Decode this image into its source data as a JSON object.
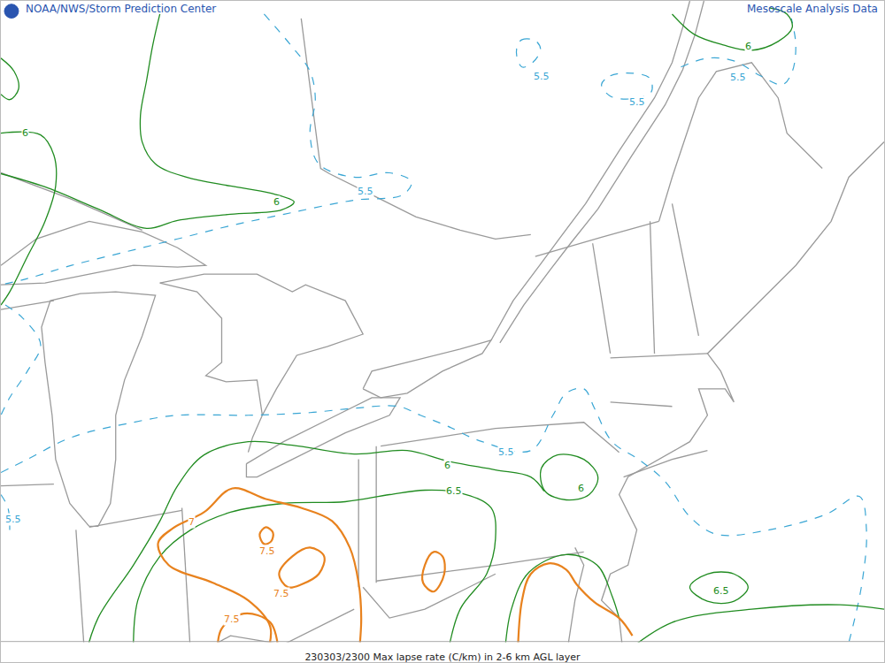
{
  "chart_data": {
    "type": "contour_map",
    "title": "230303/2300 Max lapse rate (C/km) in 2-6 km AGL layer",
    "header_left": "NOAA/NWS/Storm Prediction Center",
    "header_right": "Mesoscale Analysis Data",
    "xlim": [
      0,
      1000
    ],
    "ylim": [
      750,
      0
    ],
    "tick_labels": false,
    "grid": false,
    "contours": [
      {
        "level": 5.5,
        "color": "#3aa6d4",
        "line_style": "dash",
        "lines": [
          [
            [
              298,
              15
            ],
            [
              328,
              50
            ],
            [
              350,
              80
            ],
            [
              356,
              112
            ],
            [
              350,
              150
            ],
            [
              360,
              185
            ],
            [
              400,
              200
            ],
            [
              440,
              195
            ],
            [
              465,
              205
            ],
            [
              455,
              220
            ],
            [
              400,
              226
            ],
            [
              330,
              240
            ],
            [
              260,
              255
            ],
            [
              200,
              270
            ],
            [
              140,
              285
            ],
            [
              80,
              300
            ],
            [
              30,
              315
            ],
            [
              0,
              322
            ]
          ],
          [
            [
              585,
              50
            ],
            [
              590,
              44
            ],
            [
              605,
              45
            ],
            [
              611,
              55
            ],
            [
              602,
              70
            ],
            [
              590,
              75
            ],
            [
              584,
              62
            ],
            [
              585,
              50
            ]
          ],
          [
            [
              680,
              95
            ],
            [
              690,
              85
            ],
            [
              715,
              82
            ],
            [
              735,
              88
            ],
            [
              736,
              104
            ],
            [
              715,
              111
            ],
            [
              690,
              108
            ],
            [
              680,
              95
            ]
          ],
          [
            [
              770,
              75
            ],
            [
              800,
              65
            ],
            [
              830,
              68
            ],
            [
              860,
              85
            ],
            [
              885,
              95
            ],
            [
              896,
              80
            ],
            [
              900,
              50
            ],
            [
              895,
              20
            ]
          ],
          [
            [
              5,
              345
            ],
            [
              25,
              360
            ],
            [
              45,
              390
            ],
            [
              30,
              420
            ],
            [
              10,
              450
            ],
            [
              0,
              470
            ]
          ],
          [
            [
              0,
              535
            ],
            [
              30,
              520
            ],
            [
              80,
              495
            ],
            [
              150,
              478
            ],
            [
              200,
              470
            ],
            [
              280,
              470
            ],
            [
              350,
              467
            ],
            [
              400,
              462
            ],
            [
              450,
              460
            ],
            [
              475,
              470
            ],
            [
              505,
              482
            ],
            [
              545,
              500
            ],
            [
              600,
              510
            ],
            [
              625,
              470
            ],
            [
              640,
              445
            ],
            [
              660,
              440
            ],
            [
              672,
              462
            ],
            [
              692,
              500
            ],
            [
              722,
              520
            ],
            [
              752,
              545
            ],
            [
              780,
              585
            ],
            [
              810,
              605
            ],
            [
              870,
              600
            ],
            [
              935,
              582
            ],
            [
              972,
              562
            ],
            [
              980,
              600
            ],
            [
              975,
              660
            ],
            [
              962,
              720
            ],
            [
              955,
              745
            ]
          ],
          [
            [
              0,
              560
            ],
            [
              8,
              575
            ],
            [
              10,
              600
            ]
          ]
        ],
        "labels": [
          [
            612,
            86
          ],
          [
            720,
            115
          ],
          [
            835,
            87
          ],
          [
            413,
            216
          ],
          [
            572,
            512
          ],
          [
            14,
            588
          ]
        ]
      },
      {
        "level": 6,
        "color": "#218c21",
        "line_style": "solid",
        "lines": [
          [
            [
              180,
              15
            ],
            [
              172,
              50
            ],
            [
              165,
              90
            ],
            [
              158,
              130
            ],
            [
              160,
              160
            ],
            [
              175,
              185
            ],
            [
              210,
              200
            ],
            [
              260,
              210
            ],
            [
              305,
              218
            ],
            [
              332,
              228
            ],
            [
              318,
              237
            ],
            [
              260,
              242
            ],
            [
              200,
              249
            ],
            [
              165,
              258
            ],
            [
              110,
              236
            ],
            [
              50,
              211
            ],
            [
              0,
              196
            ]
          ],
          [
            [
              0,
              150
            ],
            [
              45,
              152
            ],
            [
              60,
              175
            ],
            [
              62,
              210
            ],
            [
              50,
              250
            ],
            [
              30,
              290
            ],
            [
              10,
              330
            ],
            [
              0,
              345
            ]
          ],
          [
            [
              0,
              65
            ],
            [
              15,
              80
            ],
            [
              20,
              100
            ],
            [
              10,
              112
            ],
            [
              0,
              106
            ]
          ],
          [
            [
              760,
              15
            ],
            [
              785,
              38
            ],
            [
              818,
              50
            ],
            [
              850,
              56
            ],
            [
              880,
              46
            ],
            [
              896,
              30
            ],
            [
              890,
              15
            ],
            [
              870,
              8
            ]
          ],
          [
            [
              95,
              745
            ],
            [
              110,
              700
            ],
            [
              150,
              640
            ],
            [
              180,
              590
            ],
            [
              200,
              550
            ],
            [
              230,
              515
            ],
            [
              280,
              500
            ],
            [
              330,
              504
            ],
            [
              400,
              514
            ],
            [
              460,
              510
            ],
            [
              506,
              522
            ],
            [
              560,
              532
            ],
            [
              600,
              540
            ],
            [
              615,
              556
            ]
          ],
          [
            [
              612,
              530
            ],
            [
              630,
              515
            ],
            [
              660,
              520
            ],
            [
              676,
              540
            ],
            [
              666,
              560
            ],
            [
              640,
              566
            ],
            [
              616,
              556
            ],
            [
              612,
              530
            ]
          ]
        ],
        "labels": [
          [
            28,
            150
          ],
          [
            312,
            228
          ],
          [
            846,
            52
          ],
          [
            506,
            527
          ],
          [
            657,
            553
          ]
        ]
      },
      {
        "level": 6.5,
        "color": "#218c21",
        "line_style": "solid",
        "lines": [
          [
            [
              150,
              745
            ],
            [
              155,
              680
            ],
            [
              180,
              630
            ],
            [
              215,
              600
            ],
            [
              260,
              580
            ],
            [
              320,
              570
            ],
            [
              390,
              568
            ],
            [
              440,
              560
            ],
            [
              480,
              555
            ],
            [
              520,
              558
            ],
            [
              555,
              575
            ],
            [
              560,
              610
            ],
            [
              550,
              650
            ],
            [
              520,
              690
            ],
            [
              505,
              745
            ]
          ],
          [
            [
              570,
              745
            ],
            [
              578,
              690
            ],
            [
              598,
              648
            ],
            [
              640,
              628
            ],
            [
              675,
              640
            ],
            [
              692,
              675
            ],
            [
              700,
              700
            ]
          ],
          [
            [
              780,
              665
            ],
            [
              800,
              650
            ],
            [
              830,
              650
            ],
            [
              846,
              665
            ],
            [
              830,
              681
            ],
            [
              800,
              681
            ],
            [
              780,
              665
            ]
          ],
          [
            [
              700,
              745
            ],
            [
              760,
              705
            ],
            [
              850,
              690
            ],
            [
              950,
              685
            ],
            [
              1000,
              690
            ]
          ]
        ],
        "labels": [
          [
            513,
            556
          ],
          [
            816,
            669
          ]
        ]
      },
      {
        "level": 7,
        "color": "#e8821e",
        "line_style": "solid",
        "lines": [
          [
            [
              300,
              745
            ],
            [
              305,
              710
            ],
            [
              280,
              680
            ],
            [
              240,
              660
            ],
            [
              190,
              640
            ],
            [
              178,
              615
            ],
            [
              195,
              598
            ],
            [
              230,
              580
            ],
            [
              262,
              553
            ],
            [
              300,
              565
            ],
            [
              340,
              575
            ],
            [
              375,
              590
            ],
            [
              395,
              620
            ],
            [
              405,
              660
            ],
            [
              408,
              700
            ],
            [
              405,
              745
            ]
          ],
          [
            [
              480,
              640
            ],
            [
              490,
              625
            ],
            [
              500,
              630
            ],
            [
              502,
              650
            ],
            [
              490,
              670
            ],
            [
              478,
              660
            ],
            [
              480,
              640
            ]
          ],
          [
            [
              585,
              745
            ],
            [
              590,
              680
            ],
            [
              600,
              650
            ],
            [
              620,
              638
            ],
            [
              640,
              645
            ],
            [
              652,
              662
            ],
            [
              672,
              682
            ],
            [
              700,
              700
            ],
            [
              715,
              720
            ]
          ]
        ],
        "labels": [
          [
            216,
            591
          ]
        ]
      },
      {
        "level": 7.5,
        "color": "#e8821e",
        "line_style": "solid",
        "lines": [
          [
            [
              293,
              605
            ],
            [
              300,
              597
            ],
            [
              308,
              603
            ],
            [
              306,
              613
            ],
            [
              298,
              616
            ],
            [
              293,
              605
            ]
          ],
          [
            [
              315,
              650
            ],
            [
              330,
              630
            ],
            [
              350,
              620
            ],
            [
              366,
              630
            ],
            [
              360,
              650
            ],
            [
              340,
              662
            ],
            [
              325,
              665
            ],
            [
              315,
              650
            ]
          ],
          [
            [
              245,
              745
            ],
            [
              250,
              712
            ],
            [
              275,
              695
            ],
            [
              305,
              705
            ],
            [
              315,
              745
            ]
          ]
        ],
        "labels": [
          [
            302,
            624
          ],
          [
            318,
            672
          ],
          [
            262,
            701
          ]
        ]
      }
    ]
  }
}
